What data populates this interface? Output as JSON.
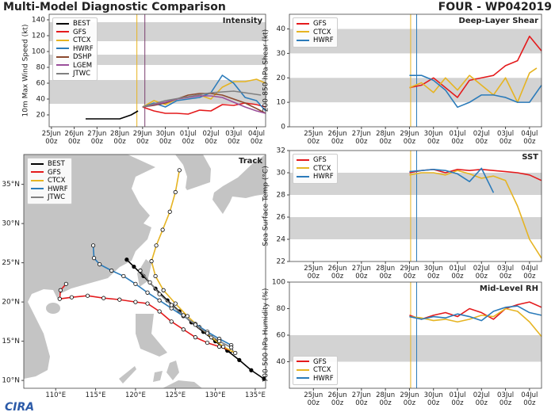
{
  "header": {
    "title": "Multi-Model Diagnostic Comparison",
    "storm": "FOUR - WP042019",
    "logo": "CIRA"
  },
  "chart_data": [
    {
      "type": "line",
      "title": "Intensity",
      "ylabel": "10m Max Wind Speed (kt)",
      "xlim": [
        -0.1,
        9.4
      ],
      "ylim": [
        5,
        147
      ],
      "yticks": [
        20,
        40,
        60,
        80,
        100,
        120,
        140
      ],
      "xticks": [
        {
          "value": 0,
          "label": "25Jun\n00z"
        },
        {
          "value": 1,
          "label": "26Jun\n00z"
        },
        {
          "value": 2,
          "label": "27Jun\n00z"
        },
        {
          "value": 3,
          "label": "28Jun\n00z"
        },
        {
          "value": 4,
          "label": "29Jun\n00z"
        },
        {
          "value": 5,
          "label": "30Jun\n00z"
        },
        {
          "value": 6,
          "label": "01Jul\n00z"
        },
        {
          "value": 7,
          "label": "02Jul\n00z"
        },
        {
          "value": 8,
          "label": "03Jul\n00z"
        },
        {
          "value": 9,
          "label": "04Jul\n00z"
        }
      ],
      "bands": [
        [
          34,
          64
        ],
        [
          83,
          96
        ],
        [
          113,
          137
        ]
      ],
      "band_color": "#d3d3d3",
      "vlines": [
        {
          "x": 3.75,
          "color": "#e6b422"
        },
        {
          "x": 4.1,
          "color": "#7b3f6f"
        }
      ],
      "legend": "upper left",
      "series": [
        {
          "name": "BEST",
          "color": "#000000",
          "x": [
            1.5,
            2,
            2.5,
            3,
            3.5,
            3.8
          ],
          "values": [
            15,
            15,
            15,
            15,
            20,
            25
          ]
        },
        {
          "name": "GFS",
          "color": "#e41a1c",
          "x": [
            4,
            4.5,
            5,
            5.5,
            6,
            6.5,
            7,
            7.5,
            8,
            8.5,
            9,
            9.4
          ],
          "values": [
            30,
            25,
            22,
            22,
            21,
            26,
            25,
            33,
            32,
            35,
            33,
            30
          ]
        },
        {
          "name": "CTCX",
          "color": "#e6b422",
          "x": [
            4,
            4.5,
            5,
            5.5,
            6,
            6.5,
            7,
            7.5,
            8,
            8.5,
            9,
            9.4
          ],
          "values": [
            30,
            38,
            33,
            40,
            42,
            45,
            40,
            55,
            62,
            62,
            65,
            60
          ]
        },
        {
          "name": "HWRF",
          "color": "#2b7bba",
          "x": [
            4,
            4.5,
            5,
            5.5,
            6,
            6.5,
            7,
            7.5,
            8,
            8.5,
            9,
            9.4
          ],
          "values": [
            30,
            35,
            30,
            38,
            40,
            42,
            48,
            70,
            60,
            42,
            38,
            25
          ]
        },
        {
          "name": "DSHP",
          "color": "#8c4a2f",
          "x": [
            4,
            4.5,
            5,
            5.5,
            6,
            6.5,
            7,
            7.5,
            8,
            8.5,
            9,
            9.4
          ],
          "values": [
            30,
            32,
            35,
            40,
            45,
            47,
            47,
            45,
            40,
            35,
            28,
            22
          ]
        },
        {
          "name": "LGEM",
          "color": "#9b4f9b",
          "x": [
            4,
            4.5,
            5,
            5.5,
            6,
            6.5,
            7,
            7.5,
            8,
            8.5,
            9,
            9.4
          ],
          "values": [
            30,
            33,
            36,
            40,
            42,
            44,
            44,
            42,
            36,
            30,
            25,
            22
          ]
        },
        {
          "name": "JTWC",
          "color": "#808080",
          "x": [
            4,
            5,
            6,
            7,
            8,
            9.2
          ],
          "values": [
            30,
            38,
            43,
            48,
            50,
            45
          ]
        }
      ]
    },
    {
      "type": "map",
      "title": "Track",
      "xlim": [
        106,
        136.3
      ],
      "ylim": [
        9,
        38.8
      ],
      "xticks": [
        {
          "value": 110,
          "label": "110°E"
        },
        {
          "value": 115,
          "label": "115°E"
        },
        {
          "value": 120,
          "label": "120°E"
        },
        {
          "value": 125,
          "label": "125°E"
        },
        {
          "value": 130,
          "label": "130°E"
        },
        {
          "value": 135,
          "label": "135°E"
        }
      ],
      "yticks": [
        {
          "value": 10,
          "label": "10°N"
        },
        {
          "value": 15,
          "label": "15°N"
        },
        {
          "value": 20,
          "label": "20°N"
        },
        {
          "value": 25,
          "label": "25°N"
        },
        {
          "value": 30,
          "label": "30°N"
        },
        {
          "value": 35,
          "label": "35°N"
        }
      ],
      "legend": "upper left",
      "series": [
        {
          "name": "BEST",
          "color": "#000000",
          "marker": "filled",
          "x": [
            136.1,
            134.5,
            133,
            131.5,
            130,
            128.5,
            127,
            125.5,
            124,
            122.5,
            121,
            119.8,
            118.9
          ],
          "values": [
            10.2,
            11.3,
            12.6,
            13.8,
            15,
            16.2,
            17.4,
            18.8,
            20.2,
            21.7,
            23.3,
            24.5,
            25.4
          ]
        },
        {
          "name": "GFS",
          "color": "#e41a1c",
          "marker": "open",
          "x": [
            132,
            130.5,
            129,
            127.5,
            126,
            124.5,
            123,
            121.5,
            120,
            118,
            116,
            114,
            112,
            110.5,
            110.6,
            111.3
          ],
          "values": [
            13.8,
            14.3,
            14.8,
            15.5,
            16.5,
            17.5,
            18.8,
            19.8,
            20,
            20.3,
            20.5,
            20.8,
            20.6,
            20.4,
            21.5,
            22.3
          ]
        },
        {
          "name": "CTCX",
          "color": "#e6b422",
          "marker": "open",
          "x": [
            132.5,
            131,
            129.5,
            128,
            126.5,
            125,
            123.5,
            122.5,
            122,
            122.6,
            123.4,
            124.3,
            125,
            125.5
          ],
          "values": [
            13.5,
            14.3,
            15.5,
            16.8,
            18.2,
            19.8,
            21.5,
            23.3,
            25.2,
            27.2,
            29.2,
            31.5,
            34,
            36.8
          ]
        },
        {
          "name": "HWRF",
          "color": "#2b7bba",
          "marker": "open",
          "x": [
            132,
            130.5,
            129,
            127.5,
            126,
            124.5,
            123,
            121.5,
            120,
            118.5,
            117,
            115.5,
            114.8,
            114.7
          ],
          "values": [
            14.5,
            15.3,
            16.2,
            17.2,
            18.2,
            19.2,
            20.2,
            21.2,
            22.3,
            23.3,
            24,
            24.8,
            25.6,
            27.2
          ]
        },
        {
          "name": "JTWC",
          "color": "#808080",
          "marker": "open",
          "x": [
            132,
            130.5,
            129,
            127.5,
            126,
            124.5,
            123,
            121.8,
            120.6
          ],
          "values": [
            14.2,
            15,
            16,
            17.1,
            18.3,
            19.6,
            21,
            22.5,
            24
          ]
        }
      ]
    },
    {
      "type": "line",
      "title": "Deep-Layer Shear",
      "ylabel": "200-850 hPa Shear (kt)",
      "xlim": [
        -1,
        9.5
      ],
      "ylim": [
        0,
        46
      ],
      "yticks": [
        0,
        10,
        20,
        30,
        40
      ],
      "xticks": [
        {
          "value": 0,
          "label": "25Jun\n00z"
        },
        {
          "value": 1,
          "label": "26Jun\n00z"
        },
        {
          "value": 2,
          "label": "27Jun\n00z"
        },
        {
          "value": 3,
          "label": "28Jun\n00z"
        },
        {
          "value": 4,
          "label": "29Jun\n00z"
        },
        {
          "value": 5,
          "label": "30Jun\n00z"
        },
        {
          "value": 6,
          "label": "01Jul\n00z"
        },
        {
          "value": 7,
          "label": "02Jul\n00z"
        },
        {
          "value": 8,
          "label": "03Jul\n00z"
        },
        {
          "value": 9,
          "label": "04Jul\n00z"
        }
      ],
      "bands": [
        [
          10,
          20
        ],
        [
          30,
          40
        ]
      ],
      "band_color": "#d3d3d3",
      "vlines": [
        {
          "x": 4.05,
          "color": "#e6b422"
        },
        {
          "x": 4.3,
          "color": "#2b7bba"
        }
      ],
      "legend": "upper left",
      "series": [
        {
          "name": "GFS",
          "color": "#e41a1c",
          "x": [
            4,
            4.5,
            5,
            5.5,
            6,
            6.5,
            7,
            7.5,
            8,
            8.5,
            9,
            9.5
          ],
          "values": [
            16,
            17,
            20,
            16,
            12,
            19,
            20,
            21,
            25,
            27,
            37,
            31
          ]
        },
        {
          "name": "CTCX",
          "color": "#e6b422",
          "x": [
            4,
            4.5,
            5,
            5.5,
            6,
            6.5,
            7,
            7.5,
            8,
            8.5,
            9,
            9.3
          ],
          "values": [
            16,
            18,
            14,
            20,
            15,
            21,
            17,
            13,
            20,
            10,
            22,
            24
          ]
        },
        {
          "name": "HWRF",
          "color": "#2b7bba",
          "x": [
            4,
            4.5,
            5,
            5.5,
            6,
            6.5,
            7,
            7.5,
            8,
            8.5,
            9,
            9.5
          ],
          "values": [
            21,
            21,
            19,
            15,
            8,
            10,
            13,
            13,
            12,
            10,
            10,
            17
          ]
        }
      ]
    },
    {
      "type": "line",
      "title": "SST",
      "ylabel": "Sea Surface Temp (°C)",
      "xlim": [
        -1,
        9.5
      ],
      "ylim": [
        22,
        32
      ],
      "yticks": [
        22,
        24,
        26,
        28,
        30,
        32
      ],
      "xticks": [
        {
          "value": 0,
          "label": "25Jun\n00z"
        },
        {
          "value": 1,
          "label": "26Jun\n00z"
        },
        {
          "value": 2,
          "label": "27Jun\n00z"
        },
        {
          "value": 3,
          "label": "28Jun\n00z"
        },
        {
          "value": 4,
          "label": "29Jun\n00z"
        },
        {
          "value": 5,
          "label": "30Jun\n00z"
        },
        {
          "value": 6,
          "label": "01Jul\n00z"
        },
        {
          "value": 7,
          "label": "02Jul\n00z"
        },
        {
          "value": 8,
          "label": "03Jul\n00z"
        },
        {
          "value": 9,
          "label": "04Jul\n00z"
        }
      ],
      "bands": [
        [
          24,
          26
        ],
        [
          28,
          30
        ]
      ],
      "band_color": "#d3d3d3",
      "vlines": [
        {
          "x": 4.05,
          "color": "#e6b422"
        },
        {
          "x": 4.3,
          "color": "#2b7bba"
        }
      ],
      "legend": "upper left",
      "series": [
        {
          "name": "GFS",
          "color": "#e41a1c",
          "x": [
            4,
            4.5,
            5,
            5.5,
            6,
            6.5,
            7,
            7.5,
            8,
            8.5,
            9,
            9.5
          ],
          "values": [
            30,
            30.2,
            30.3,
            30,
            30.3,
            30.2,
            30.3,
            30.2,
            30.1,
            30,
            29.8,
            29.3
          ]
        },
        {
          "name": "CTCX",
          "color": "#e6b422",
          "x": [
            4,
            4.5,
            5,
            5.5,
            6,
            6.5,
            7,
            7.5,
            8,
            8.5,
            9,
            9.5
          ],
          "values": [
            29.8,
            30,
            30,
            29.8,
            30.2,
            29.9,
            29.5,
            29.7,
            29.3,
            27,
            24,
            22.3
          ]
        },
        {
          "name": "HWRF",
          "color": "#2b7bba",
          "x": [
            4,
            4.5,
            5,
            5.5,
            6,
            6.5,
            7,
            7.5
          ],
          "values": [
            30.1,
            30.2,
            30.3,
            30.2,
            29.9,
            29.2,
            30.4,
            28.2
          ]
        }
      ]
    },
    {
      "type": "line",
      "title": "Mid-Level RH",
      "ylabel": "700-500 hPa Humidity (%)",
      "xlim": [
        -1,
        9.5
      ],
      "ylim": [
        20,
        100
      ],
      "yticks": [
        40,
        60,
        80,
        100
      ],
      "xticks": [
        {
          "value": 0,
          "label": "25Jun\n00z"
        },
        {
          "value": 1,
          "label": "26Jun\n00z"
        },
        {
          "value": 2,
          "label": "27Jun\n00z"
        },
        {
          "value": 3,
          "label": "28Jun\n00z"
        },
        {
          "value": 4,
          "label": "29Jun\n00z"
        },
        {
          "value": 5,
          "label": "30Jun\n00z"
        },
        {
          "value": 6,
          "label": "01Jul\n00z"
        },
        {
          "value": 7,
          "label": "02Jul\n00z"
        },
        {
          "value": 8,
          "label": "03Jul\n00z"
        },
        {
          "value": 9,
          "label": "04Jul\n00z"
        }
      ],
      "bands": [
        [
          40,
          60
        ]
      ],
      "band_color": "#d3d3d3",
      "vlines": [
        {
          "x": 4.05,
          "color": "#e6b422"
        },
        {
          "x": 4.3,
          "color": "#2b7bba"
        }
      ],
      "legend": "lower left",
      "series": [
        {
          "name": "GFS",
          "color": "#e41a1c",
          "x": [
            4,
            4.5,
            5,
            5.5,
            6,
            6.5,
            7,
            7.5,
            8,
            8.5,
            9,
            9.5
          ],
          "values": [
            75,
            72,
            75,
            77,
            74,
            80,
            77,
            72,
            80,
            83,
            85,
            81
          ]
        },
        {
          "name": "CTCX",
          "color": "#e6b422",
          "x": [
            4,
            4.5,
            5,
            5.5,
            6,
            6.5,
            7,
            7.5,
            8,
            8.5,
            9,
            9.5
          ],
          "values": [
            74,
            73,
            71,
            72,
            70,
            72,
            75,
            74,
            80,
            78,
            70,
            59
          ]
        },
        {
          "name": "HWRF",
          "color": "#2b7bba",
          "x": [
            4,
            4.5,
            5,
            5.5,
            6,
            6.5,
            7,
            7.5,
            8,
            8.5,
            9,
            9.5
          ],
          "values": [
            74,
            72,
            74,
            73,
            76,
            74,
            71,
            78,
            81,
            82,
            77,
            75
          ]
        }
      ]
    }
  ]
}
